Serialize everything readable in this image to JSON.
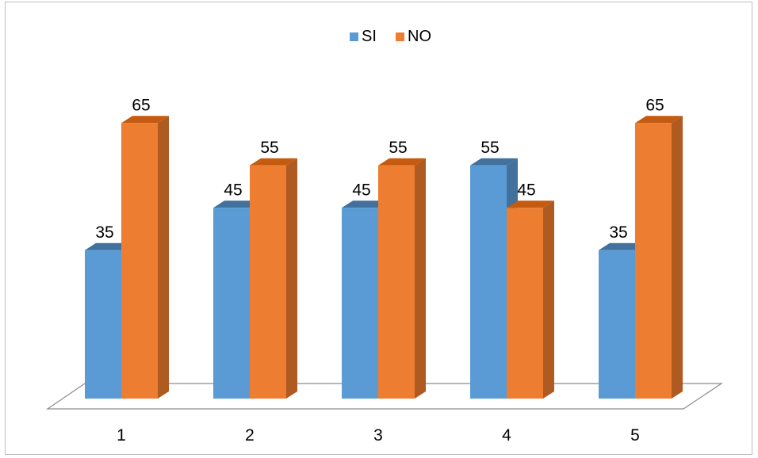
{
  "chart_data": {
    "type": "bar",
    "style": "3d-clustered-column",
    "categories": [
      "1",
      "2",
      "3",
      "4",
      "5"
    ],
    "series": [
      {
        "name": "SI",
        "values": [
          35,
          45,
          45,
          55,
          35
        ],
        "color": "#5b9bd5",
        "side_color": "#41719c",
        "top_color": "#41719c"
      },
      {
        "name": "NO",
        "values": [
          65,
          55,
          55,
          45,
          65
        ],
        "color": "#ed7d31",
        "side_color": "#ae5a21",
        "top_color": "#c55a11"
      }
    ],
    "data_labels": true,
    "legend": {
      "position": "top",
      "items": [
        "SI",
        "NO"
      ]
    },
    "grid": false,
    "ylim": [
      0,
      100
    ]
  }
}
